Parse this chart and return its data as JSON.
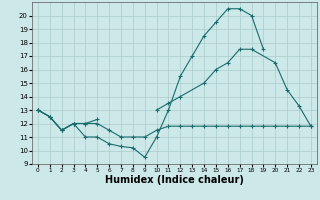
{
  "xlabel": "Humidex (Indice chaleur)",
  "background_color": "#cce8e8",
  "grid_color": "#aacccc",
  "line_color": "#1a6b6b",
  "xlim": [
    -0.5,
    23.5
  ],
  "ylim": [
    9,
    21
  ],
  "xticks": [
    0,
    1,
    2,
    3,
    4,
    5,
    6,
    7,
    8,
    9,
    10,
    11,
    12,
    13,
    14,
    15,
    16,
    17,
    18,
    19,
    20,
    21,
    22,
    23
  ],
  "yticks": [
    9,
    10,
    11,
    12,
    13,
    14,
    15,
    16,
    17,
    18,
    19,
    20
  ],
  "curve1_x": [
    0,
    1,
    2,
    3,
    4,
    5,
    6,
    7,
    8,
    9,
    10,
    11,
    12,
    13,
    14,
    15,
    16,
    17,
    18,
    19
  ],
  "curve1_y": [
    13,
    12.5,
    11.5,
    12,
    11,
    11,
    10.5,
    10.3,
    10.2,
    9.5,
    11,
    13,
    15.5,
    17,
    18.5,
    19.5,
    20.5,
    20.5,
    20,
    17.5
  ],
  "curve2_x": [
    0,
    1,
    2,
    3,
    4,
    5,
    6,
    7,
    8,
    9,
    10,
    11,
    12,
    13,
    14,
    15,
    16,
    17,
    18,
    19,
    20,
    21,
    22,
    23
  ],
  "curve2_y": [
    13,
    12.5,
    11.5,
    12,
    12,
    12,
    11.5,
    11,
    11,
    11,
    11.5,
    11.8,
    11.8,
    11.8,
    11.8,
    11.8,
    11.8,
    11.8,
    11.8,
    11.8,
    11.8,
    11.8,
    11.8,
    11.8
  ],
  "curve3_segs": [
    {
      "x": [
        0,
        1,
        2,
        3,
        4,
        5
      ],
      "y": [
        13,
        12.5,
        11.5,
        12,
        12,
        12.3
      ]
    },
    {
      "x": [
        10,
        11,
        12,
        14,
        15,
        16,
        17,
        18,
        20,
        21,
        22,
        23
      ],
      "y": [
        13,
        13.5,
        14,
        15,
        16,
        16.5,
        17.5,
        17.5,
        16.5,
        14.5,
        13.3,
        11.8
      ]
    }
  ],
  "xlabel_fontsize": 7,
  "tick_fontsize": 5
}
